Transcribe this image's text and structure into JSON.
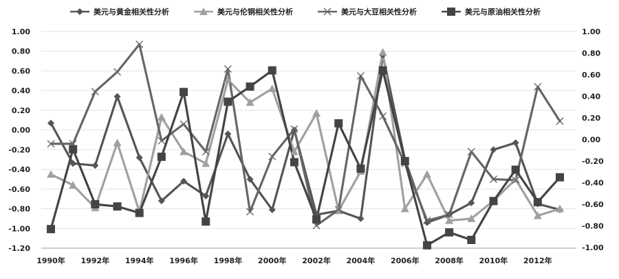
{
  "chart_data": {
    "type": "line",
    "x": [
      "1990年",
      "1991年",
      "1992年",
      "1993年",
      "1994年",
      "1995年",
      "1996年",
      "1997年",
      "1998年",
      "1999年",
      "2000年",
      "2001年",
      "2002年",
      "2003年",
      "2004年",
      "2005年",
      "2006年",
      "2007年",
      "2008年",
      "2009年",
      "2010年",
      "2011年",
      "2012年",
      "2013年"
    ],
    "x_tick_labels": [
      "1990年",
      "1992年",
      "1994年",
      "1996年",
      "1998年",
      "2000年",
      "2002年",
      "2004年",
      "2006年",
      "2008年",
      "2010年",
      "2012年"
    ],
    "left_axis": {
      "ylim": [
        -1.2,
        1.0
      ],
      "ticks": [
        "1.00",
        "0.80",
        "0.60",
        "0.40",
        "0.20",
        "0.00",
        "-0.20",
        "-0.40",
        "-0.60",
        "-0.80",
        "-1.00",
        "-1.20"
      ]
    },
    "right_axis": {
      "ylim": [
        -1.0,
        1.0
      ],
      "ticks": [
        "1.00",
        "0.80",
        "0.60",
        "0.40",
        "0.20",
        "0.00",
        "-0.20",
        "-0.40",
        "-0.60",
        "-0.80",
        "-1.00"
      ]
    },
    "grid": true,
    "legend_position": "top",
    "series": [
      {
        "name": "美元与黄金相关性分析",
        "axis": "left",
        "marker": "diamond",
        "color": "#555555",
        "values": [
          0.07,
          -0.34,
          -0.36,
          0.34,
          -0.28,
          -0.72,
          -0.52,
          -0.67,
          -0.04,
          -0.5,
          -0.81,
          0.0,
          -0.86,
          -0.82,
          -0.9,
          0.76,
          -0.3,
          -0.94,
          -0.86,
          -0.74,
          -0.2,
          -0.13,
          -0.75,
          -0.81
        ]
      },
      {
        "name": "美元与伦铜相关性分析",
        "axis": "left",
        "marker": "triangle",
        "color": "#a0a0a0",
        "values": [
          -0.45,
          -0.56,
          -0.79,
          -0.13,
          -0.83,
          0.13,
          -0.22,
          -0.34,
          0.51,
          0.28,
          0.42,
          -0.22,
          0.17,
          -0.82,
          -0.42,
          0.79,
          -0.8,
          -0.45,
          -0.92,
          -0.9,
          -0.72,
          -0.5,
          -0.87,
          -0.8
        ]
      },
      {
        "name": "美元与大豆相关性分析",
        "axis": "left",
        "marker": "x",
        "color": "#666666",
        "values": [
          -0.14,
          -0.14,
          0.39,
          0.59,
          0.87,
          -0.11,
          0.06,
          -0.22,
          0.62,
          -0.83,
          -0.27,
          0.01,
          -0.97,
          -0.81,
          0.55,
          0.14,
          -0.34,
          -0.92,
          -0.86,
          -0.22,
          -0.5,
          -0.51,
          0.44,
          0.09
        ]
      },
      {
        "name": "美元与原油相关性分析",
        "axis": "right",
        "marker": "square",
        "color": "#444444",
        "values": [
          -0.83,
          -0.09,
          -0.6,
          -0.62,
          -0.68,
          -0.16,
          0.44,
          -0.76,
          0.35,
          0.49,
          0.64,
          -0.21,
          -0.74,
          0.15,
          -0.27,
          0.64,
          -0.2,
          -0.98,
          -0.86,
          -0.93,
          -0.57,
          -0.28,
          -0.58,
          -0.35
        ]
      }
    ]
  }
}
